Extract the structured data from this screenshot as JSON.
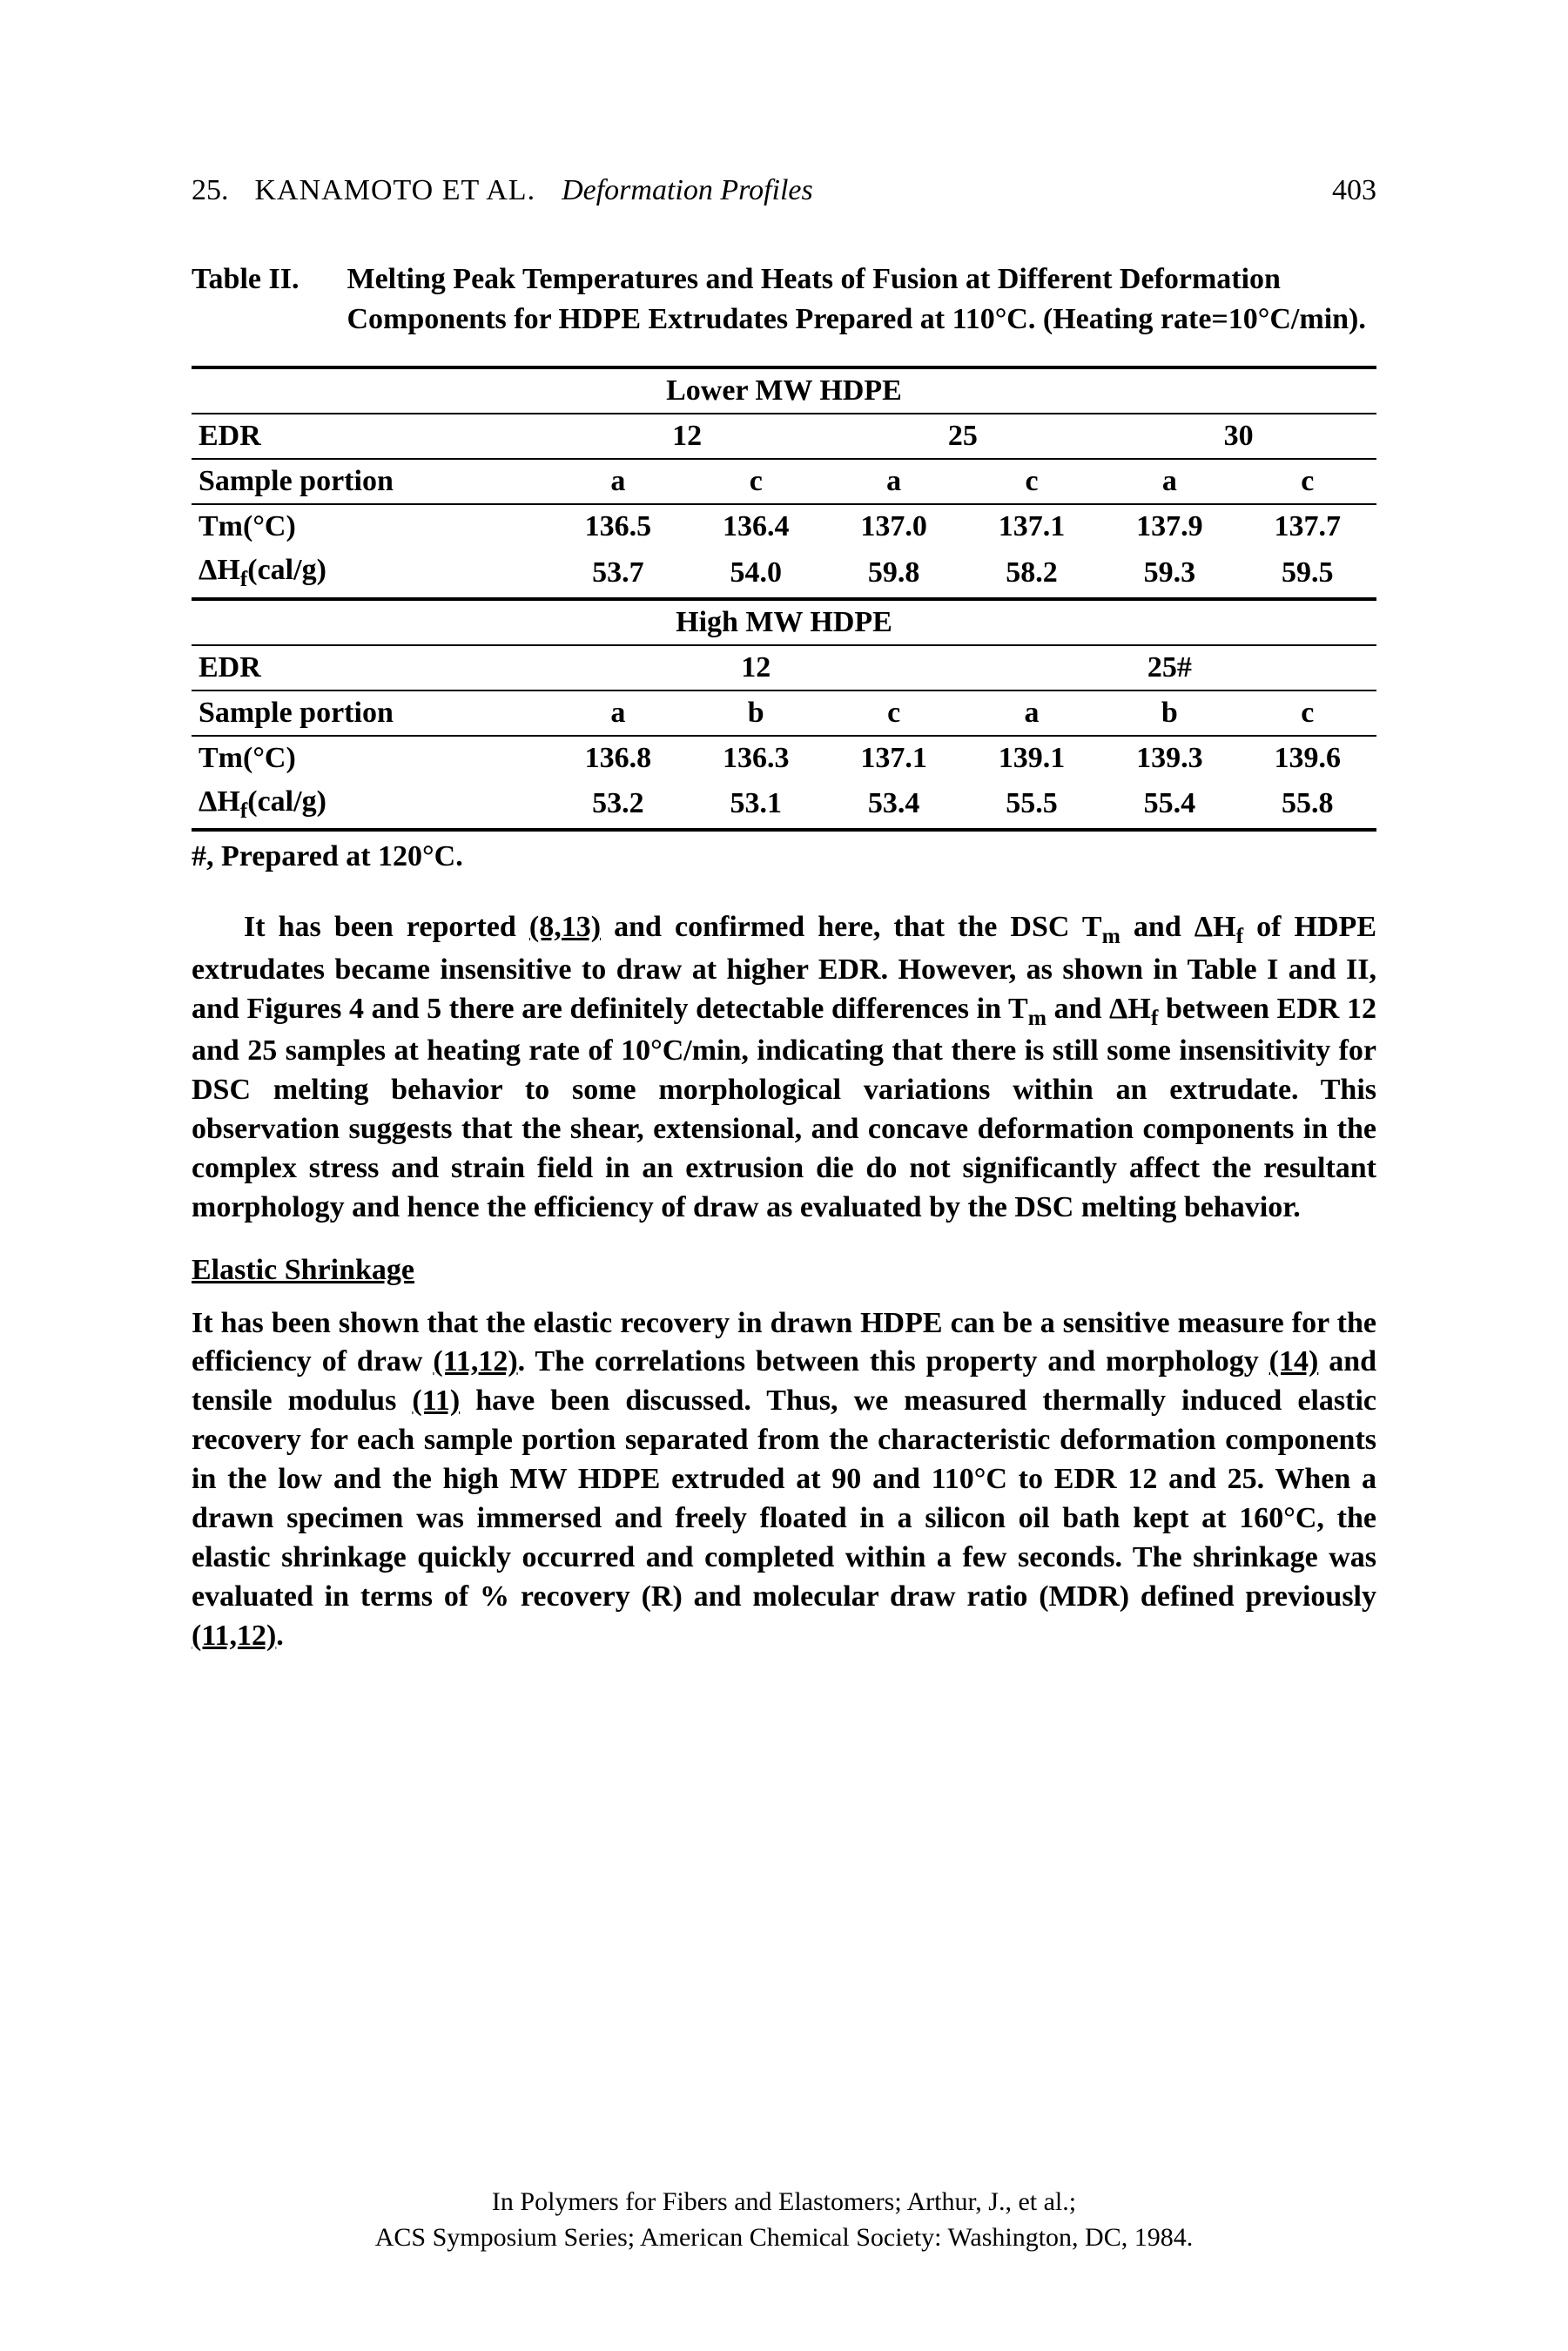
{
  "header": {
    "chapter": "25.",
    "authors": "KANAMOTO ET AL.",
    "running_title": "Deformation Profiles",
    "page_number": "403"
  },
  "table2": {
    "label": "Table II.",
    "title": "Melting Peak Temperatures and Heats of Fusion at Different Deformation Components for HDPE Extrudates Prepared at 110°C.  (Heating rate=10°C/min).",
    "lower_title": "Lower MW HDPE",
    "high_title": "High MW HDPE",
    "edr_label": "EDR",
    "sample_label": "Sample portion",
    "tm_label": "Tm(°C)",
    "dh_label": "ΔHf(cal/g)",
    "lower": {
      "edr": [
        "12",
        "25",
        "30"
      ],
      "portions": [
        "a",
        "c",
        "a",
        "c",
        "a",
        "c"
      ],
      "tm": [
        "136.5",
        "136.4",
        "137.0",
        "137.1",
        "137.9",
        "137.7"
      ],
      "dh": [
        "53.7",
        "54.0",
        "59.8",
        "58.2",
        "59.3",
        "59.5"
      ]
    },
    "high": {
      "edr": [
        "12",
        "25#"
      ],
      "portions": [
        "a",
        "b",
        "c",
        "a",
        "b",
        "c"
      ],
      "tm": [
        "136.8",
        "136.3",
        "137.1",
        "139.1",
        "139.3",
        "139.6"
      ],
      "dh": [
        "53.2",
        "53.1",
        "53.4",
        "55.5",
        "55.4",
        "55.8"
      ]
    },
    "footnote": "#, Prepared at 120°C."
  },
  "para1_a": "It has been reported ",
  "para1_ref1": "(8,13)",
  "para1_b": " and confirmed here, that the DSC T",
  "para1_c": " and ΔH",
  "para1_d": " of HDPE extrudates became insensitive to draw at higher EDR. However, as shown in Table I and II, and Figures 4 and 5 there are definitely detectable differences in T",
  "para1_e": " and ΔH",
  "para1_f": " between EDR 12 and 25 samples at heating rate of 10°C/min, indicating that there is still some insensitivity for DSC melting behavior to some morphological variations within an extrudate.  This observation suggests that the shear, extensional, and concave deformation components in the complex stress and strain field in an extrusion die do not significantly affect the resultant morphology and hence the efficiency of draw as evaluated by the DSC melting behavior.",
  "section_heading": "Elastic Shrinkage",
  "para2_a": "It has been shown that the elastic recovery in drawn HDPE can be a sensitive measure for the efficiency of draw ",
  "para2_ref1": "(11,12)",
  "para2_b": ".  The correlations between this property and morphology ",
  "para2_ref2": "(14)",
  "para2_c": " and tensile modulus ",
  "para2_ref3": "(11)",
  "para2_d": " have been discussed.  Thus, we measured thermally induced elastic recovery for each sample portion separated from the characteristic deformation components in the low and the high MW HDPE extruded at 90 and 110°C to EDR 12 and 25.  When a drawn specimen was immersed and freely floated in a silicon oil bath kept at 160°C, the elastic shrinkage quickly occurred and completed within a few seconds. The shrinkage was evaluated in terms of % recovery (R) and molecular draw ratio (MDR) defined previously ",
  "para2_ref4": "(11,12)",
  "para2_e": ".",
  "imprint": {
    "line1": "In Polymers for Fibers and Elastomers; Arthur, J., et al.;",
    "line2": "ACS Symposium Series; American Chemical Society: Washington, DC, 1984."
  }
}
